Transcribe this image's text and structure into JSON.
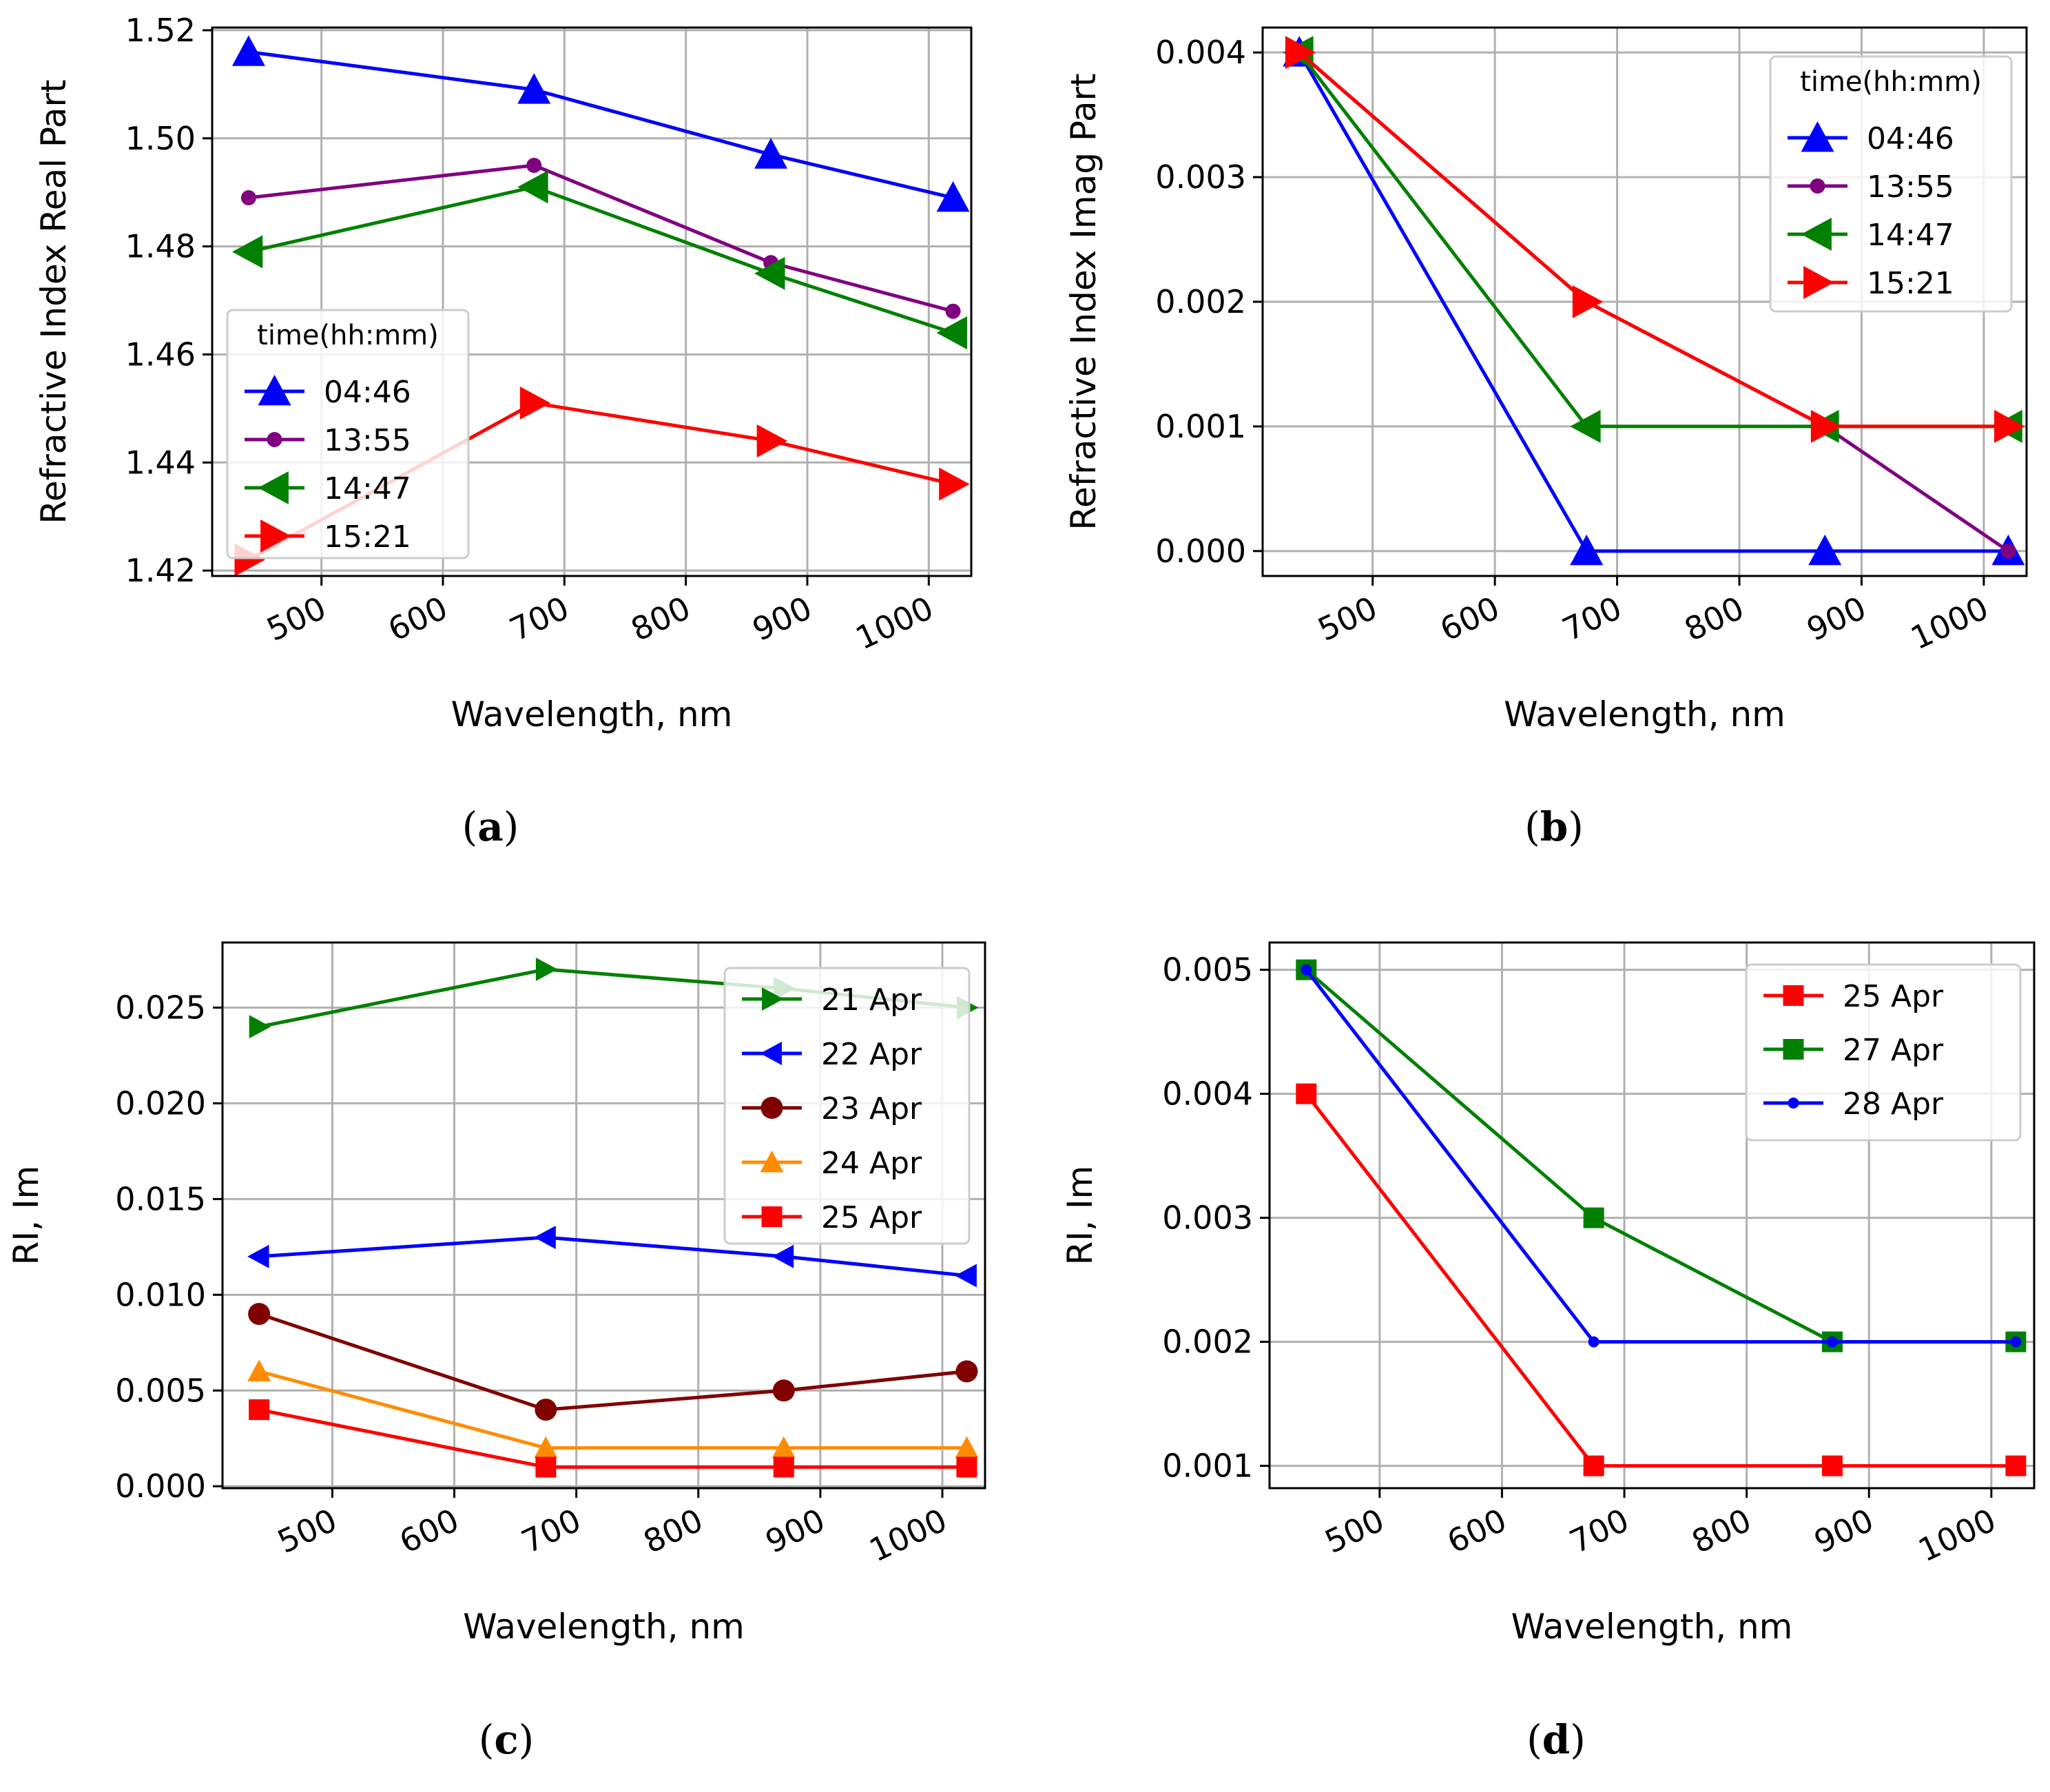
{
  "chart_data": [
    {
      "panel": "a",
      "type": "line",
      "caption": "(a)",
      "caption_bold": "a",
      "xlabel": "Wavelength, nm",
      "ylabel": "Refractive Index Real Part",
      "xlim": [
        410,
        1035
      ],
      "ylim": [
        1.419,
        1.5205
      ],
      "xticks": [
        500,
        600,
        700,
        800,
        900,
        1000
      ],
      "xticklabels": [
        "500",
        "600",
        "700",
        "800",
        "900",
        "1000"
      ],
      "yticks": [
        1.42,
        1.44,
        1.46,
        1.48,
        1.5,
        1.52
      ],
      "yticklabels": [
        "1.42",
        "1.44",
        "1.46",
        "1.48",
        "1.50",
        "1.52"
      ],
      "legend": {
        "title": "time(hh:mm)",
        "position": "lower-left"
      },
      "series": [
        {
          "name": "04:46",
          "color": "#0000ff",
          "marker": "triangle-up",
          "msize": 24,
          "x": [
            440,
            675,
            870,
            1020
          ],
          "y": [
            1.516,
            1.509,
            1.497,
            1.489
          ]
        },
        {
          "name": "13:55",
          "color": "#800080",
          "marker": "circle",
          "msize": 11,
          "x": [
            440,
            675,
            870,
            1020
          ],
          "y": [
            1.489,
            1.495,
            1.477,
            1.468
          ]
        },
        {
          "name": "14:47",
          "color": "#008000",
          "marker": "triangle-left",
          "msize": 24,
          "x": [
            440,
            675,
            870,
            1020
          ],
          "y": [
            1.479,
            1.491,
            1.475,
            1.464
          ]
        },
        {
          "name": "15:21",
          "color": "#ff0000",
          "marker": "triangle-right",
          "msize": 24,
          "x": [
            440,
            675,
            870,
            1020
          ],
          "y": [
            1.422,
            1.451,
            1.444,
            1.436
          ]
        }
      ]
    },
    {
      "panel": "b",
      "type": "line",
      "caption": "(b)",
      "caption_bold": "b",
      "xlabel": "Wavelength, nm",
      "ylabel": "Refractive Index Imag Part",
      "xlim": [
        410,
        1035
      ],
      "ylim": [
        -0.0002,
        0.0042
      ],
      "xticks": [
        500,
        600,
        700,
        800,
        900,
        1000
      ],
      "xticklabels": [
        "500",
        "600",
        "700",
        "800",
        "900",
        "1000"
      ],
      "yticks": [
        0,
        0.001,
        0.002,
        0.003,
        0.004
      ],
      "yticklabels": [
        "0.000",
        "0.001",
        "0.002",
        "0.003",
        "0.004"
      ],
      "legend": {
        "title": "time(hh:mm)",
        "position": "upper-right"
      },
      "series": [
        {
          "name": "04:46",
          "color": "#0000ff",
          "marker": "triangle-up",
          "msize": 24,
          "x": [
            440,
            675,
            870,
            1020
          ],
          "y": [
            0.004,
            0,
            0,
            0
          ]
        },
        {
          "name": "13:55",
          "color": "#800080",
          "marker": "circle",
          "msize": 11,
          "x": [
            440,
            675,
            870,
            1020
          ],
          "y": [
            0.004,
            0.002,
            0.001,
            0
          ]
        },
        {
          "name": "14:47",
          "color": "#008000",
          "marker": "triangle-left",
          "msize": 24,
          "x": [
            440,
            675,
            870,
            1020
          ],
          "y": [
            0.004,
            0.001,
            0.001,
            0.001
          ]
        },
        {
          "name": "15:21",
          "color": "#ff0000",
          "marker": "triangle-right",
          "msize": 24,
          "x": [
            440,
            675,
            870,
            1020
          ],
          "y": [
            0.004,
            0.002,
            0.001,
            0.001
          ]
        }
      ]
    },
    {
      "panel": "c",
      "type": "line",
      "caption": "(c)",
      "caption_bold": "c",
      "xlabel": "Wavelength, nm",
      "ylabel": "RI, Im",
      "xlim": [
        410,
        1035
      ],
      "ylim": [
        -0.0001,
        0.0284
      ],
      "xticks": [
        500,
        600,
        700,
        800,
        900,
        1000
      ],
      "xticklabels": [
        "500",
        "600",
        "700",
        "800",
        "900",
        "1000"
      ],
      "yticks": [
        0,
        0.005,
        0.01,
        0.015,
        0.02,
        0.025
      ],
      "yticklabels": [
        "0.000",
        "0.005",
        "0.010",
        "0.015",
        "0.020",
        "0.025"
      ],
      "legend": {
        "title": "",
        "position": "upper-right"
      },
      "series": [
        {
          "name": "21 Apr",
          "color": "#008000",
          "marker": "triangle-right",
          "msize": 17,
          "x": [
            440,
            675,
            870,
            1020
          ],
          "y": [
            0.024,
            0.027,
            0.026,
            0.025
          ]
        },
        {
          "name": "22 Apr",
          "color": "#0000ff",
          "marker": "triangle-left",
          "msize": 17,
          "x": [
            440,
            675,
            870,
            1020
          ],
          "y": [
            0.012,
            0.013,
            0.012,
            0.011
          ]
        },
        {
          "name": "23 Apr",
          "color": "#800000",
          "marker": "circle",
          "msize": 16,
          "x": [
            440,
            675,
            870,
            1020
          ],
          "y": [
            0.009,
            0.004,
            0.005,
            0.006
          ]
        },
        {
          "name": "24 Apr",
          "color": "#ff8c00",
          "marker": "triangle-up",
          "msize": 17,
          "x": [
            440,
            675,
            870,
            1020
          ],
          "y": [
            0.006,
            0.002,
            0.002,
            0.002
          ]
        },
        {
          "name": "25 Apr",
          "color": "#ff0000",
          "marker": "square",
          "msize": 15,
          "x": [
            440,
            675,
            870,
            1020
          ],
          "y": [
            0.004,
            0.001,
            0.001,
            0.001
          ]
        }
      ]
    },
    {
      "panel": "d",
      "type": "line",
      "caption": "(d)",
      "caption_bold": "d",
      "xlabel": "Wavelength, nm",
      "ylabel": "RI, Im",
      "xlim": [
        410,
        1035
      ],
      "ylim": [
        0.00082,
        0.00522
      ],
      "xticks": [
        500,
        600,
        700,
        800,
        900,
        1000
      ],
      "xticklabels": [
        "500",
        "600",
        "700",
        "800",
        "900",
        "1000"
      ],
      "yticks": [
        0.001,
        0.002,
        0.003,
        0.004,
        0.005
      ],
      "yticklabels": [
        "0.001",
        "0.002",
        "0.003",
        "0.004",
        "0.005"
      ],
      "legend": {
        "title": "",
        "position": "upper-right"
      },
      "series": [
        {
          "name": "25 Apr",
          "color": "#ff0000",
          "marker": "square",
          "msize": 15,
          "x": [
            440,
            675,
            870,
            1020
          ],
          "y": [
            0.004,
            0.001,
            0.001,
            0.001
          ]
        },
        {
          "name": "27 Apr",
          "color": "#008000",
          "marker": "square",
          "msize": 15,
          "x": [
            440,
            675,
            870,
            1020
          ],
          "y": [
            0.005,
            0.003,
            0.002,
            0.002
          ]
        },
        {
          "name": "28 Apr",
          "color": "#0000ff",
          "marker": "circle",
          "msize": 8,
          "x": [
            440,
            675,
            870,
            1020
          ],
          "y": [
            0.005,
            0.002,
            0.002,
            0.002
          ]
        }
      ]
    }
  ]
}
